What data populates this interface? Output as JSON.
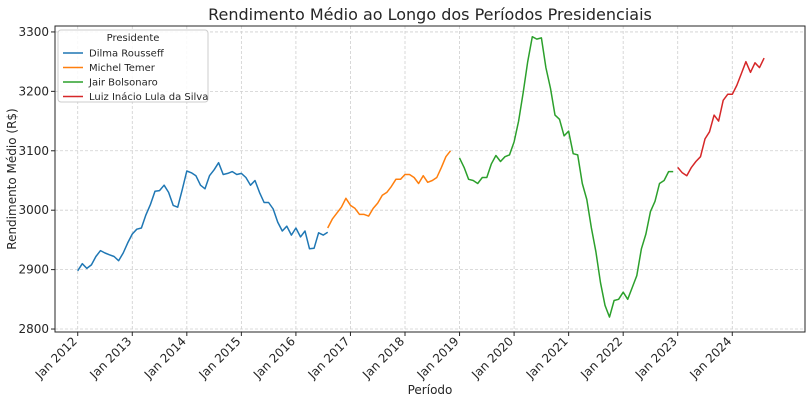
{
  "chart_data": {
    "type": "line",
    "title": "Rendimento Médio ao Longo dos Períodos Presidenciais",
    "xlabel": "Período",
    "ylabel": "Rendimento Médio (R$)",
    "ylim": [
      2795,
      3310
    ],
    "xlim": [
      "2011-08",
      "2025-05"
    ],
    "y_ticks": [
      2800,
      2900,
      3000,
      3100,
      3200,
      3300
    ],
    "x_ticks": [
      {
        "date": "2012-01",
        "label": "Jan 2012"
      },
      {
        "date": "2013-01",
        "label": "Jan 2013"
      },
      {
        "date": "2014-01",
        "label": "Jan 2014"
      },
      {
        "date": "2015-01",
        "label": "Jan 2015"
      },
      {
        "date": "2016-01",
        "label": "Jan 2016"
      },
      {
        "date": "2017-01",
        "label": "Jan 2017"
      },
      {
        "date": "2018-01",
        "label": "Jan 2018"
      },
      {
        "date": "2019-01",
        "label": "Jan 2019"
      },
      {
        "date": "2020-01",
        "label": "Jan 2020"
      },
      {
        "date": "2021-01",
        "label": "Jan 2021"
      },
      {
        "date": "2022-01",
        "label": "Jan 2022"
      },
      {
        "date": "2023-01",
        "label": "Jan 2023"
      },
      {
        "date": "2024-01",
        "label": "Jan 2024"
      }
    ],
    "grid": true,
    "legend": {
      "title": "Presidente",
      "position": "top-left"
    },
    "series": [
      {
        "name": "Dilma Rousseff",
        "color": "#1f77b4",
        "start": "2012-01",
        "values": [
          2898,
          2910,
          2902,
          2908,
          2922,
          2932,
          2928,
          2925,
          2922,
          2915,
          2928,
          2945,
          2960,
          2968,
          2970,
          2992,
          3010,
          3032,
          3033,
          3042,
          3030,
          3008,
          3005,
          3035,
          3066,
          3063,
          3058,
          3042,
          3036,
          3058,
          3068,
          3080,
          3060,
          3062,
          3065,
          3060,
          3062,
          3055,
          3042,
          3050,
          3030,
          3013,
          3013,
          3002,
          2980,
          2965,
          2973,
          2958,
          2970,
          2955,
          2965,
          2935,
          2936,
          2962,
          2958,
          2963
        ]
      },
      {
        "name": "Michel Temer",
        "color": "#ff7f0e",
        "start": "2016-08",
        "values": [
          2970,
          2985,
          2995,
          3005,
          3020,
          3008,
          3003,
          2993,
          2993,
          2990,
          3003,
          3012,
          3025,
          3030,
          3040,
          3052,
          3052,
          3060,
          3060,
          3055,
          3045,
          3058,
          3047,
          3050,
          3055,
          3072,
          3090,
          3100
        ]
      },
      {
        "name": "Jair Bolsonaro",
        "color": "#2ca02c",
        "start": "2019-01",
        "values": [
          3088,
          3072,
          3052,
          3050,
          3045,
          3055,
          3055,
          3078,
          3092,
          3082,
          3090,
          3093,
          3115,
          3150,
          3198,
          3250,
          3292,
          3288,
          3290,
          3240,
          3205,
          3160,
          3153,
          3125,
          3133,
          3095,
          3093,
          3045,
          3018,
          2970,
          2930,
          2878,
          2840,
          2820,
          2848,
          2850,
          2862,
          2850,
          2870,
          2890,
          2935,
          2960,
          2998,
          3015,
          3045,
          3050,
          3065,
          3065
        ]
      },
      {
        "name": "Luiz Inácio Lula da Silva",
        "color": "#d62728",
        "start": "2023-01",
        "values": [
          3072,
          3063,
          3058,
          3072,
          3082,
          3090,
          3120,
          3132,
          3160,
          3150,
          3185,
          3195,
          3195,
          3210,
          3230,
          3250,
          3232,
          3248,
          3240,
          3256
        ]
      }
    ]
  }
}
